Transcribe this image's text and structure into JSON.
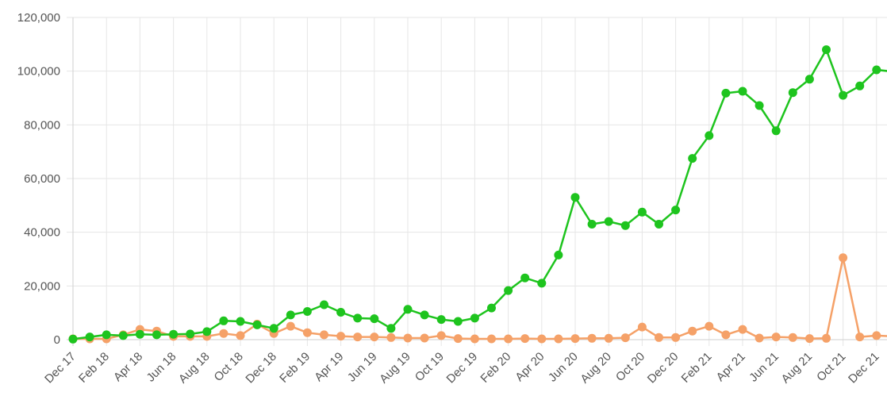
{
  "chart_data": {
    "type": "line",
    "title": "",
    "xlabel": "",
    "ylabel": "",
    "ylim": [
      0,
      120000
    ],
    "yticks": [
      0,
      20000,
      40000,
      60000,
      80000,
      100000,
      120000
    ],
    "ytick_labels": [
      "0",
      "20,000",
      "40,000",
      "60,000",
      "80,000",
      "100,000",
      "120,000"
    ],
    "grid": true,
    "legend": "none",
    "x": [
      "Dec 17",
      "Jan 18",
      "Feb 18",
      "Mar 18",
      "Apr 18",
      "May 18",
      "Jun 18",
      "Jul 18",
      "Aug 18",
      "Sep 18",
      "Oct 18",
      "Nov 18",
      "Dec 18",
      "Jan 19",
      "Feb 19",
      "Mar 19",
      "Apr 19",
      "May 19",
      "Jun 19",
      "Jul 19",
      "Aug 19",
      "Sep 19",
      "Oct 19",
      "Nov 19",
      "Dec 19",
      "Jan 20",
      "Feb 20",
      "Mar 20",
      "Apr 20",
      "May 20",
      "Jun 20",
      "Jul 20",
      "Aug 20",
      "Sep 20",
      "Oct 20",
      "Nov 20",
      "Dec 20",
      "Jan 21",
      "Feb 21",
      "Mar 21",
      "Apr 21",
      "May 21",
      "Jun 21",
      "Jul 21",
      "Aug 21",
      "Sep 21",
      "Oct 21",
      "Nov 21",
      "Dec 21",
      "Jan 22"
    ],
    "x_tick_labels": [
      "Dec 17",
      "Feb 18",
      "Apr 18",
      "Jun 18",
      "Aug 18",
      "Oct 18",
      "Dec 18",
      "Feb 19",
      "Apr 19",
      "Jun 19",
      "Aug 19",
      "Oct 19",
      "Dec 19",
      "Feb 20",
      "Apr 20",
      "Jun 20",
      "Aug 20",
      "Oct 20",
      "Dec 20",
      "Feb 21",
      "Apr 21",
      "Jun 21",
      "Aug 21",
      "Oct 21",
      "Dec 21"
    ],
    "series": [
      {
        "color": "#1ec41e",
        "values": [
          200,
          1000,
          1800,
          1500,
          2000,
          1800,
          2000,
          2100,
          3000,
          7000,
          6800,
          5500,
          4200,
          9200,
          10500,
          13000,
          10200,
          8000,
          7800,
          4200,
          11300,
          9200,
          7500,
          6800,
          8000,
          11800,
          18300,
          23000,
          21000,
          31500,
          53000,
          43000,
          44000,
          42500,
          47500,
          43000,
          48300,
          67500,
          76000,
          91800,
          92500,
          87200,
          77800,
          92000,
          97000,
          108000,
          91000,
          94500,
          100500,
          99800
        ]
      },
      {
        "color": "#f5a168",
        "values": [
          300,
          300,
          300,
          1800,
          3800,
          3200,
          1200,
          1200,
          1200,
          2300,
          1500,
          5800,
          2300,
          5000,
          2600,
          1800,
          1300,
          1000,
          1000,
          800,
          600,
          600,
          1500,
          400,
          300,
          300,
          300,
          400,
          300,
          300,
          400,
          500,
          500,
          700,
          4700,
          800,
          800,
          3200,
          5000,
          1800,
          3800,
          600,
          1000,
          800,
          400,
          500,
          30500,
          1000,
          1500,
          1200
        ]
      }
    ]
  }
}
